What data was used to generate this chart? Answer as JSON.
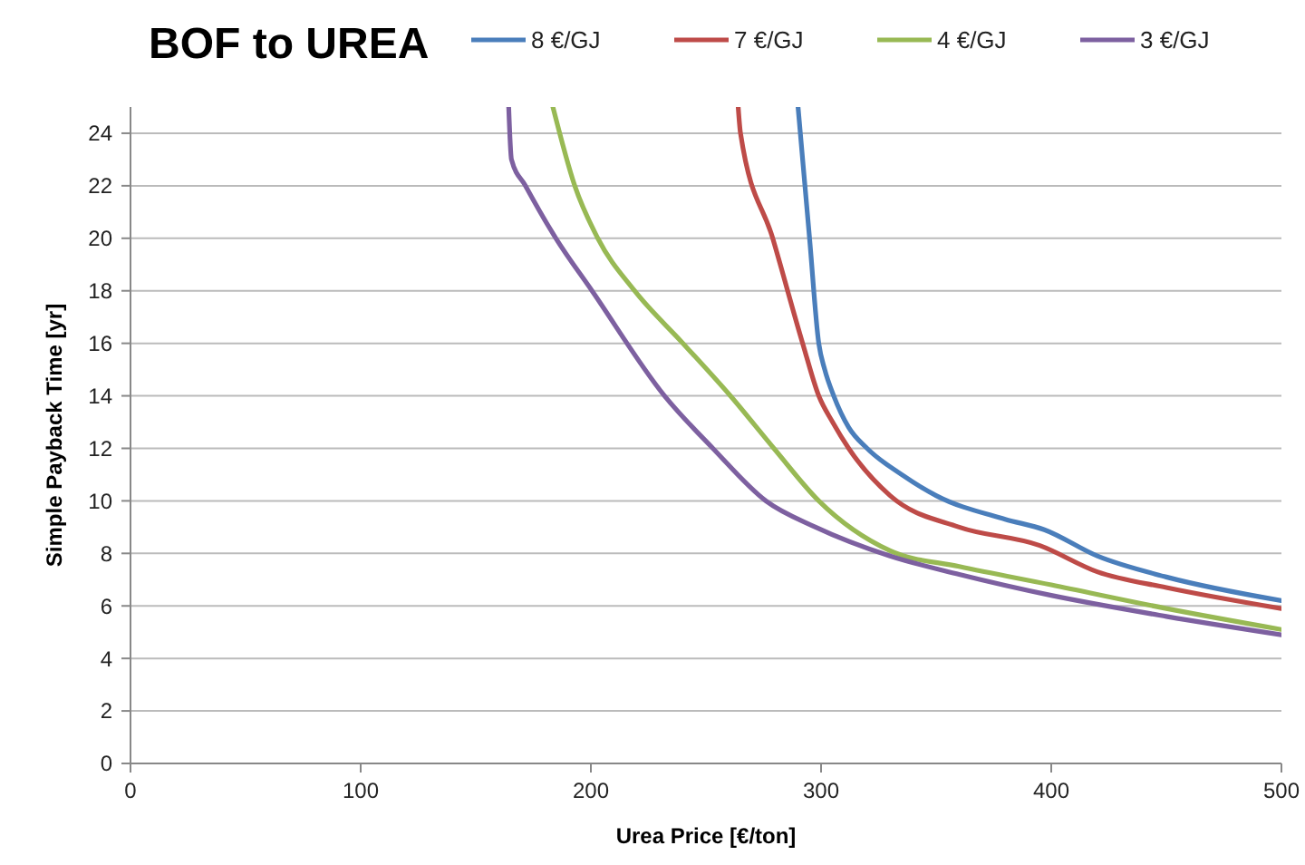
{
  "chart_data": {
    "type": "line",
    "title": "BOF to UREA",
    "xlabel": "Urea Price [€/ton]",
    "ylabel": "Simple Payback Time [yr]",
    "xlim": [
      0,
      500
    ],
    "xticks": [
      0,
      100,
      200,
      300,
      400,
      500
    ],
    "ylim": [
      0,
      25
    ],
    "yticks": [
      0,
      2,
      4,
      6,
      8,
      10,
      12,
      14,
      16,
      18,
      20,
      22,
      24
    ],
    "grid": "y",
    "legend": "top right",
    "marker": "none",
    "line_style": "solid",
    "series": [
      {
        "name": "8 €/GJ",
        "color": "#4a7ebb",
        "x": [
          290,
          291,
          295,
          299,
          301.6,
          305.5,
          312,
          320,
          335,
          350,
          380,
          397,
          420,
          450,
          500
        ],
        "values": [
          25,
          24,
          20,
          16,
          15,
          14,
          12.8,
          12,
          11,
          10.2,
          9.3,
          8.9,
          7.9,
          7.1,
          6.2
        ]
      },
      {
        "name": "7 €/GJ",
        "color": "#be4b48",
        "x": [
          264,
          265,
          279,
          292,
          299,
          305,
          312,
          330,
          360,
          395,
          420,
          450,
          500
        ],
        "values": [
          25,
          24,
          20,
          16,
          14,
          13,
          12,
          10.2,
          9,
          8.3,
          7.3,
          6.7,
          5.9
        ]
      },
      {
        "name": "4 €/GJ",
        "color": "#98b954",
        "x": [
          183.5,
          193,
          203,
          219,
          240,
          260.6,
          279.5,
          299,
          330,
          360,
          400,
          450,
          500
        ],
        "values": [
          25,
          22,
          20,
          18,
          16,
          14,
          12,
          10,
          8.1,
          7.5,
          6.8,
          5.9,
          5.1
        ]
      },
      {
        "name": "3 €/GJ",
        "color": "#7d60a0",
        "x": [
          164.3,
          165.5,
          171.6,
          184.8,
          200.5,
          232,
          253,
          276,
          297.6,
          330,
          360,
          400,
          450,
          500
        ],
        "values": [
          25,
          23,
          22,
          20,
          18,
          14,
          12,
          10,
          9,
          7.9,
          7.2,
          6.4,
          5.6,
          4.9
        ]
      }
    ]
  }
}
